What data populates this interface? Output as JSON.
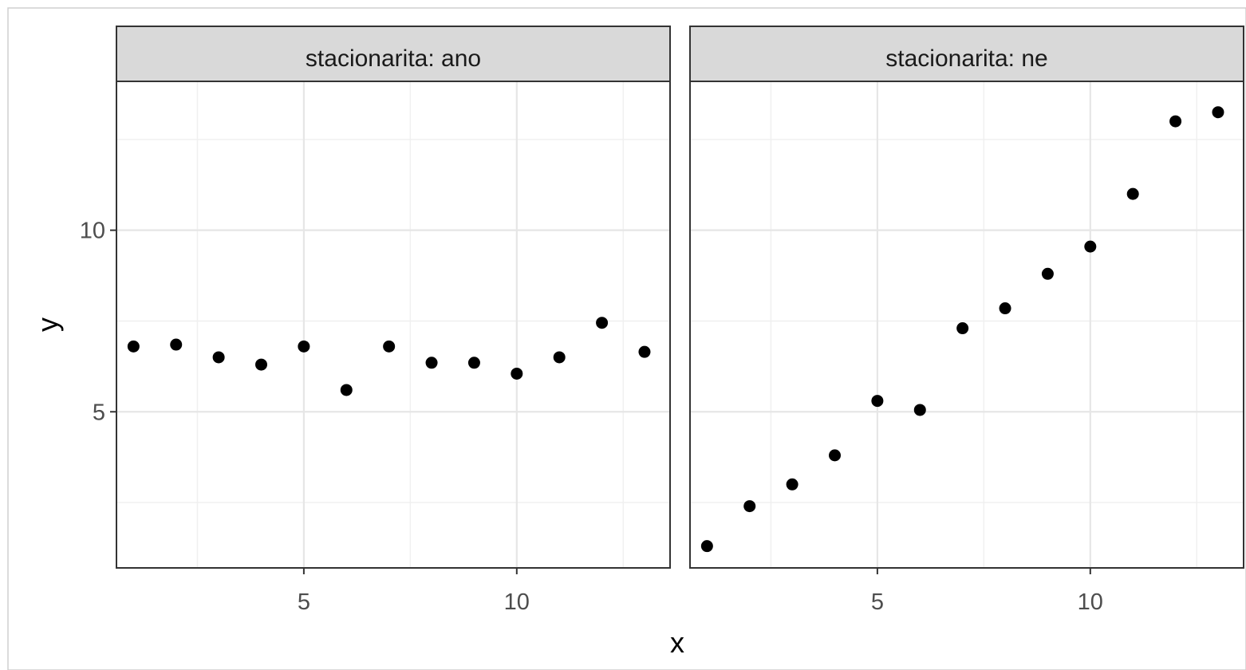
{
  "chart_data": {
    "type": "scatter",
    "xlabel": "x",
    "ylabel": "y",
    "xlim": [
      0.6,
      13.6
    ],
    "ylim": [
      0.7,
      14.1
    ],
    "x_ticks": [
      5,
      10
    ],
    "y_ticks": [
      5,
      10
    ],
    "grid": true,
    "point_color": "#000000",
    "strip_fill": "#d9d9d9",
    "panels": [
      {
        "label": "stacionarita: ano",
        "x": [
          1,
          2,
          3,
          4,
          5,
          6,
          7,
          8,
          9,
          10,
          11,
          12,
          13
        ],
        "y": [
          6.8,
          6.85,
          6.5,
          6.3,
          6.8,
          5.6,
          6.8,
          6.35,
          6.35,
          6.05,
          6.5,
          7.45,
          6.65
        ]
      },
      {
        "label": "stacionarita: ne",
        "x": [
          1,
          2,
          3,
          4,
          5,
          6,
          7,
          8,
          9,
          10,
          11,
          12,
          13
        ],
        "y": [
          1.3,
          2.4,
          3.0,
          3.8,
          5.3,
          5.05,
          7.3,
          7.85,
          8.8,
          9.55,
          11.0,
          13.0,
          13.25
        ]
      }
    ]
  }
}
